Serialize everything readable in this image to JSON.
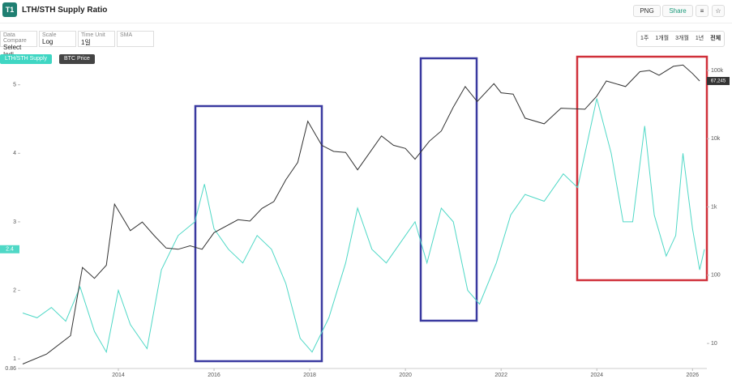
{
  "ui": {
    "logo": "T1",
    "title": "LTH/STH Supply Ratio",
    "png": "PNG",
    "share": "Share",
    "controls": [
      {
        "label": "Data Compare",
        "value": "Select Indi..."
      },
      {
        "label": "Scale",
        "value": "Log"
      },
      {
        "label": "Time Unit",
        "value": "1일"
      },
      {
        "label": "SMA",
        "value": ""
      }
    ],
    "ranges": [
      "1주",
      "1개월",
      "3개월",
      "1년",
      "전체"
    ],
    "left_badge": "2.4",
    "right_badge": "67,245"
  },
  "chart_data": {
    "type": "line",
    "grid": false,
    "xlim": [
      2011.95,
      2026.3
    ],
    "xticks": [
      2014,
      2016,
      2018,
      2020,
      2022,
      2024,
      2026
    ],
    "ylim": [
      0.86,
      5.41
    ],
    "yticks": [
      0.86,
      1,
      2,
      3,
      4,
      5
    ],
    "y2lim": [
      4.3,
      159000
    ],
    "y2scale": "log",
    "y2ticks": [
      10,
      100,
      {
        "value": 1000,
        "label": "1k"
      },
      {
        "value": 10000,
        "label": "10k"
      },
      {
        "value": 100000,
        "label": "100k"
      }
    ],
    "series": [
      {
        "name": "LTH/STH Supply",
        "color": "#4fd8c6",
        "axis": "y",
        "x": [
          2012.0,
          2012.3,
          2012.6,
          2012.9,
          2013.2,
          2013.5,
          2013.75,
          2014.0,
          2014.25,
          2014.6,
          2014.9,
          2015.25,
          2015.6,
          2015.8,
          2016.0,
          2016.3,
          2016.6,
          2016.9,
          2017.2,
          2017.5,
          2017.8,
          2018.05,
          2018.4,
          2018.75,
          2019.0,
          2019.3,
          2019.6,
          2019.9,
          2020.2,
          2020.45,
          2020.75,
          2021.0,
          2021.3,
          2021.55,
          2021.9,
          2022.2,
          2022.5,
          2022.9,
          2023.3,
          2023.6,
          2024.0,
          2024.3,
          2024.55,
          2024.75,
          2025.0,
          2025.2,
          2025.45,
          2025.65,
          2025.8,
          2026.0,
          2026.15,
          2026.25
        ],
        "values": [
          1.67,
          1.6,
          1.75,
          1.55,
          2.05,
          1.4,
          1.1,
          2.0,
          1.5,
          1.15,
          2.3,
          2.8,
          3.0,
          3.55,
          2.9,
          2.6,
          2.4,
          2.8,
          2.6,
          2.1,
          1.3,
          1.1,
          1.6,
          2.4,
          3.2,
          2.6,
          2.4,
          2.7,
          3.0,
          2.4,
          3.2,
          3.0,
          2.0,
          1.8,
          2.4,
          3.1,
          3.4,
          3.3,
          3.7,
          3.5,
          4.8,
          4.0,
          3.0,
          3.0,
          4.4,
          3.1,
          2.5,
          2.8,
          4.0,
          2.9,
          2.3,
          2.6
        ]
      },
      {
        "name": "BTC Price",
        "color": "#333333",
        "axis": "y2",
        "x": [
          2012.0,
          2012.5,
          2013.0,
          2013.25,
          2013.5,
          2013.75,
          2013.92,
          2014.25,
          2014.5,
          2014.75,
          2015.0,
          2015.25,
          2015.5,
          2015.75,
          2016.0,
          2016.5,
          2016.75,
          2017.0,
          2017.25,
          2017.5,
          2017.75,
          2017.96,
          2018.25,
          2018.5,
          2018.75,
          2019.0,
          2019.5,
          2019.75,
          2020.0,
          2020.2,
          2020.5,
          2020.75,
          2021.0,
          2021.25,
          2021.5,
          2021.85,
          2022.0,
          2022.25,
          2022.5,
          2022.9,
          2023.25,
          2023.75,
          2024.0,
          2024.2,
          2024.6,
          2024.9,
          2025.1,
          2025.3,
          2025.6,
          2025.8,
          2026.0,
          2026.15
        ],
        "values": [
          5,
          7,
          13,
          130,
          90,
          140,
          1100,
          450,
          600,
          380,
          250,
          240,
          270,
          240,
          420,
          650,
          620,
          950,
          1200,
          2500,
          4500,
          18000,
          8000,
          6500,
          6300,
          3500,
          11000,
          8000,
          7200,
          5000,
          9200,
          13000,
          29000,
          58000,
          35000,
          64000,
          47000,
          45000,
          20000,
          16500,
          28000,
          27000,
          42000,
          70000,
          58000,
          96000,
          100000,
          85000,
          115000,
          120000,
          90000,
          70000
        ]
      }
    ]
  }
}
